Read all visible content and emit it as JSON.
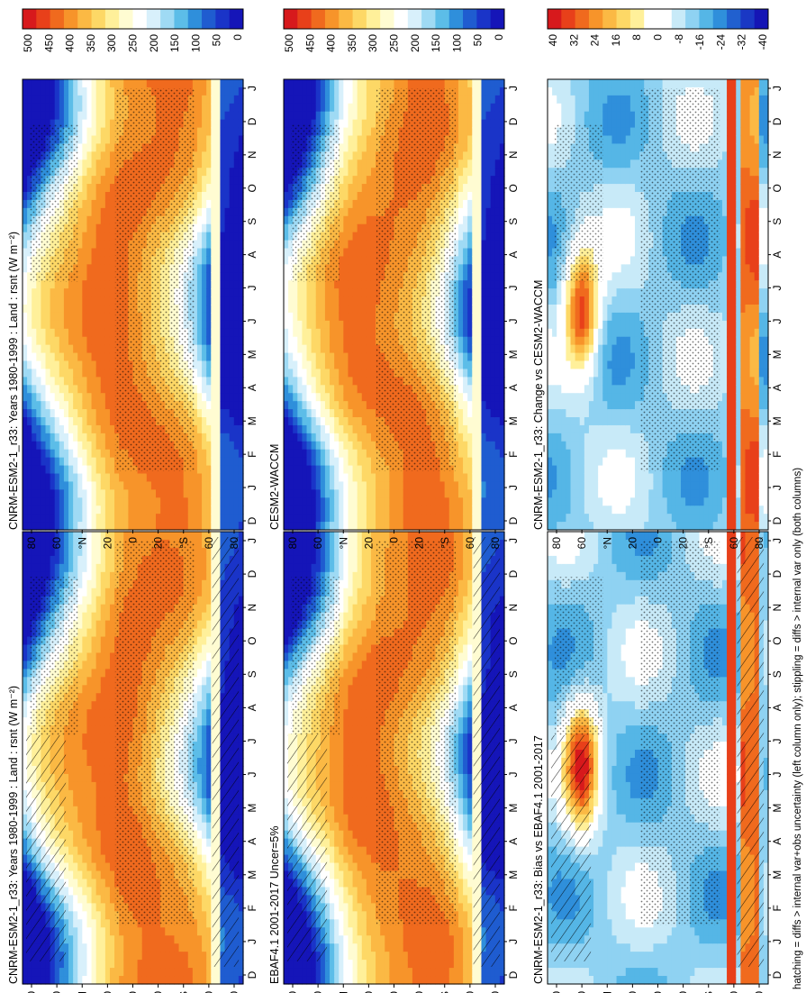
{
  "figure": {
    "footer": "hatching = diffs > internal var+obs uncertainty (left column only); stippling = diffs > internal var only (both columns)"
  },
  "months": [
    "D",
    "J",
    "F",
    "M",
    "A",
    "M",
    "J",
    "J",
    "A",
    "S",
    "O",
    "N",
    "D",
    "J"
  ],
  "lat_ticks": [
    "80",
    "60",
    "°N",
    "20",
    "0",
    "20",
    "°S",
    "60",
    "80"
  ],
  "colorbars": {
    "absolute": {
      "labels": [
        "500",
        "450",
        "400",
        "350",
        "300",
        "250",
        "200",
        "150",
        "100",
        "50",
        "0"
      ],
      "range": [
        0,
        500
      ]
    },
    "difference": {
      "labels": [
        "40",
        "32",
        "24",
        "16",
        "8",
        "0",
        "-8",
        "-16",
        "-24",
        "-32",
        "-40"
      ],
      "range": [
        -40,
        40
      ]
    }
  },
  "palettes": {
    "absolute": [
      "#d7191c",
      "#e8401a",
      "#f06a1e",
      "#f7942a",
      "#fbb944",
      "#fdd866",
      "#fff09a",
      "#fffcd2",
      "#ffffff",
      "#d8f0fb",
      "#9fdaf4",
      "#5cbde8",
      "#2f8fdb",
      "#1f5cd0",
      "#1a34c8",
      "#1515b8"
    ],
    "difference": [
      "#d7191c",
      "#e8401a",
      "#f06a1e",
      "#f7942a",
      "#fbb944",
      "#fdd866",
      "#fff09a",
      "#ffffff",
      "#ffffff",
      "#c8eaf8",
      "#8fd2f2",
      "#55b6e6",
      "#2f8fdb",
      "#2160cf",
      "#1a38c4",
      "#1515b5"
    ]
  },
  "chart_data": [
    {
      "panel": "a",
      "type": "heatmap",
      "title": "CNRM-ESM2-1_r33: Years 1980-1999 : Land : rsnt (W m⁻²)",
      "xlabel": "latitude",
      "ylabel": "month",
      "field": "absolute",
      "hatching": true,
      "stippling": true,
      "colorbar": "absolute"
    },
    {
      "panel": "b",
      "type": "heatmap",
      "title": "CNRM-ESM2-1_r33: Years 1980-1999 : Land : rsnt (W m⁻²)",
      "xlabel": "latitude",
      "ylabel": "month",
      "field": "absolute",
      "hatching": false,
      "stippling": true,
      "colorbar": "absolute"
    },
    {
      "panel": "c",
      "type": "heatmap",
      "title": "EBAF4.1 2001-2017 Uncer=5%",
      "xlabel": "latitude",
      "ylabel": "month",
      "field": "absolute",
      "hatching": true,
      "stippling": true,
      "colorbar": "absolute"
    },
    {
      "panel": "d",
      "type": "heatmap",
      "title": "CESM2-WACCM",
      "xlabel": "latitude",
      "ylabel": "month",
      "field": "absolute",
      "hatching": false,
      "stippling": true,
      "colorbar": "absolute"
    },
    {
      "panel": "e",
      "type": "heatmap",
      "title": "CNRM-ESM2-1_r33: Bias vs EBAF4.1 2001-2017",
      "xlabel": "latitude",
      "ylabel": "month",
      "field": "difference",
      "hatching": true,
      "stippling": true,
      "colorbar": "difference"
    },
    {
      "panel": "f",
      "type": "heatmap",
      "title": "CNRM-ESM2-1_r33: Change vs CESM2-WACCM",
      "xlabel": "latitude",
      "ylabel": "month",
      "field": "difference",
      "hatching": false,
      "stippling": true,
      "colorbar": "difference"
    }
  ]
}
